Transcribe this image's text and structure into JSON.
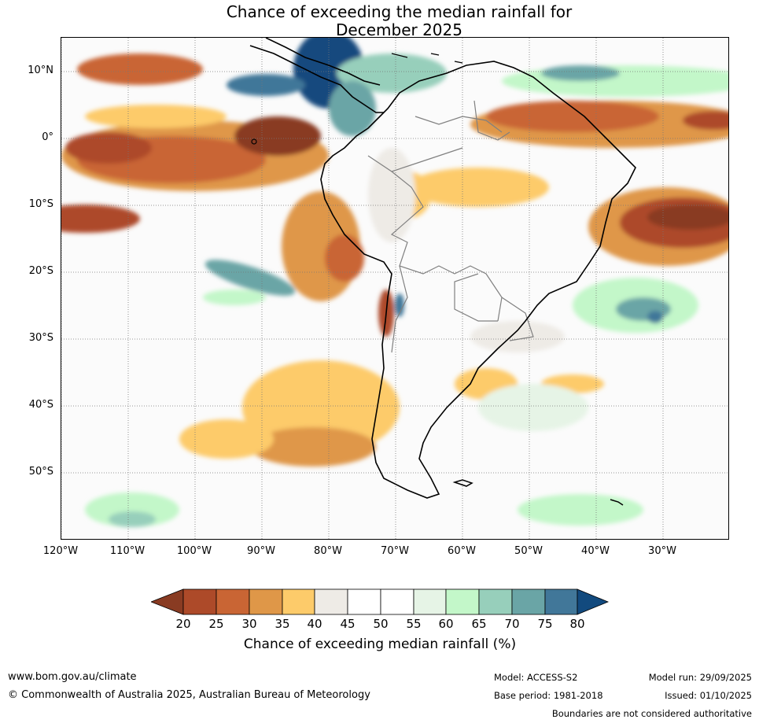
{
  "title": {
    "line1": "Chance of exceeding the median rainfall for",
    "line2": "December 2025"
  },
  "map": {
    "lat_labels": [
      "10°N",
      "0°",
      "10°S",
      "20°S",
      "30°S",
      "40°S",
      "50°S"
    ],
    "lon_labels": [
      "120°W",
      "110°W",
      "100°W",
      "90°W",
      "80°W",
      "70°W",
      "60°W",
      "50°W",
      "40°W",
      "30°W"
    ],
    "colors": {
      "c20": "#893b22",
      "c25": "#ad4a29",
      "c30": "#c96534",
      "c35": "#df9748",
      "c40": "#fdcb6a",
      "c45": "#eeebe6",
      "c55": "#ffffff",
      "c60": "#e6f4e6",
      "c65": "#c3f7c9",
      "c70": "#97cfbb",
      "c75": "#6aa5a6",
      "c80": "#417799",
      "c85": "#124a7e",
      "coast": "#000000",
      "border": "#808080"
    }
  },
  "colorbar": {
    "ticks": [
      "20",
      "25",
      "30",
      "35",
      "40",
      "45",
      "50",
      "55",
      "60",
      "65",
      "70",
      "75",
      "80"
    ],
    "label": "Chance of exceeding median rainfall (%)"
  },
  "footer": {
    "website": "www.bom.gov.au/climate",
    "copyright": "© Commonwealth of Australia 2025, Australian Bureau of Meteorology",
    "model": "Model: ACCESS-S2",
    "base_period": "Base period: 1981-2018",
    "model_run": "Model run: 29/09/2025",
    "issued": "Issued: 01/10/2025",
    "disclaimer": "Boundaries are not considered authoritative"
  }
}
